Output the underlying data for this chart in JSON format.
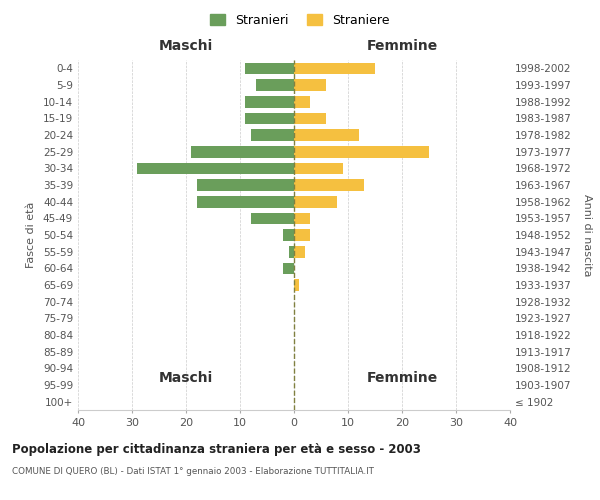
{
  "age_groups": [
    "100+",
    "95-99",
    "90-94",
    "85-89",
    "80-84",
    "75-79",
    "70-74",
    "65-69",
    "60-64",
    "55-59",
    "50-54",
    "45-49",
    "40-44",
    "35-39",
    "30-34",
    "25-29",
    "20-24",
    "15-19",
    "10-14",
    "5-9",
    "0-4"
  ],
  "birth_years": [
    "≤ 1902",
    "1903-1907",
    "1908-1912",
    "1913-1917",
    "1918-1922",
    "1923-1927",
    "1928-1932",
    "1933-1937",
    "1938-1942",
    "1943-1947",
    "1948-1952",
    "1953-1957",
    "1958-1962",
    "1963-1967",
    "1968-1972",
    "1973-1977",
    "1978-1982",
    "1983-1987",
    "1988-1992",
    "1993-1997",
    "1998-2002"
  ],
  "maschi": [
    0,
    0,
    0,
    0,
    0,
    0,
    0,
    0,
    2,
    1,
    2,
    8,
    18,
    18,
    29,
    19,
    8,
    9,
    9,
    7,
    9
  ],
  "femmine": [
    0,
    0,
    0,
    0,
    0,
    0,
    0,
    1,
    0,
    2,
    3,
    3,
    8,
    13,
    9,
    25,
    12,
    6,
    3,
    6,
    15
  ],
  "color_maschi": "#6a9e5b",
  "color_femmine": "#f5c040",
  "color_zero_line": "#808040",
  "title": "Popolazione per cittadinanza straniera per età e sesso - 2003",
  "subtitle": "COMUNE DI QUERO (BL) - Dati ISTAT 1° gennaio 2003 - Elaborazione TUTTITALIA.IT",
  "ylabel_left": "Fasce di età",
  "ylabel_right": "Anni di nascita",
  "xlabel_maschi": "Maschi",
  "xlabel_femmine": "Femmine",
  "legend_maschi": "Stranieri",
  "legend_femmine": "Straniere",
  "xlim": 40,
  "background_color": "#ffffff",
  "grid_color": "#cccccc"
}
